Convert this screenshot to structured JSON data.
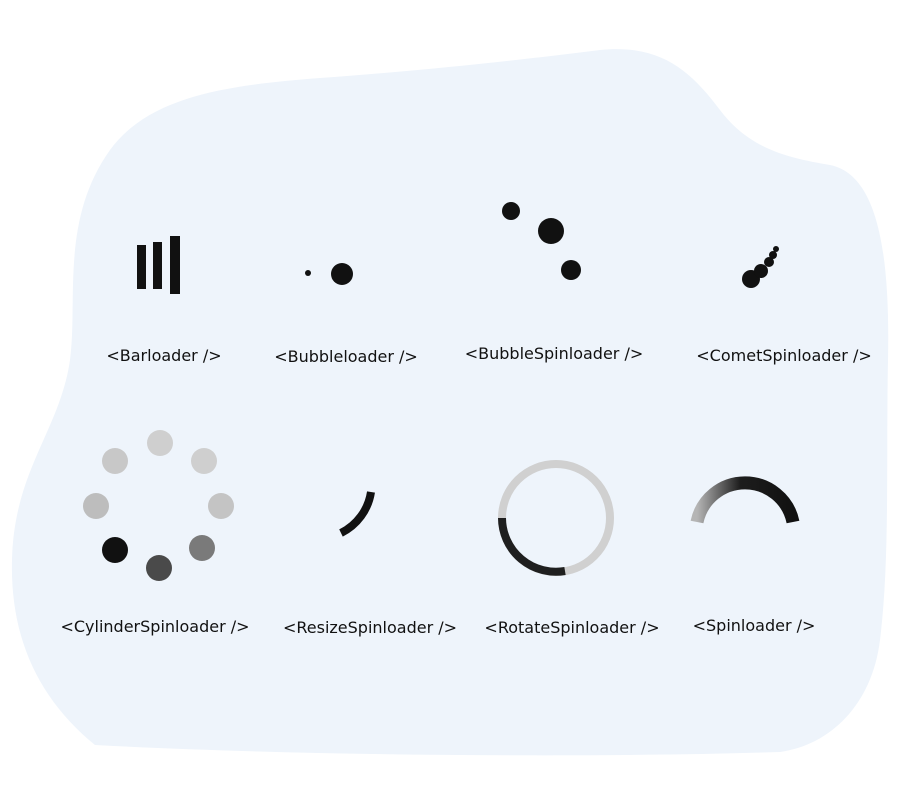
{
  "colors": {
    "background_blob": "#eef4fb",
    "page": "#ffffff",
    "ink": "#111111",
    "track_gray": "#cfcfcf",
    "mid_gray": "#7a7a7a",
    "light_gray": "#bdbdbd",
    "dark_gray": "#4a4a4a"
  },
  "loaders": [
    {
      "id": "barloader",
      "label": "<Barloader />",
      "icon": "bar-loader-icon"
    },
    {
      "id": "bubbleloader",
      "label": "<Bubbleloader />",
      "icon": "bubble-loader-icon"
    },
    {
      "id": "bubblespinloader",
      "label": "<BubbleSpinloader />",
      "icon": "bubble-spin-loader-icon"
    },
    {
      "id": "cometspinloader",
      "label": "<CometSpinloader />",
      "icon": "comet-spin-loader-icon"
    },
    {
      "id": "cylinderspinloader",
      "label": "<CylinderSpinloader />",
      "icon": "cylinder-spin-loader-icon"
    },
    {
      "id": "resizespinloader",
      "label": "<ResizeSpinloader />",
      "icon": "resize-spin-loader-icon"
    },
    {
      "id": "rotatespinloader",
      "label": "<RotateSpinloader />",
      "icon": "rotate-spin-loader-icon"
    },
    {
      "id": "spinloader",
      "label": "<Spinloader />",
      "icon": "spin-loader-icon"
    }
  ]
}
